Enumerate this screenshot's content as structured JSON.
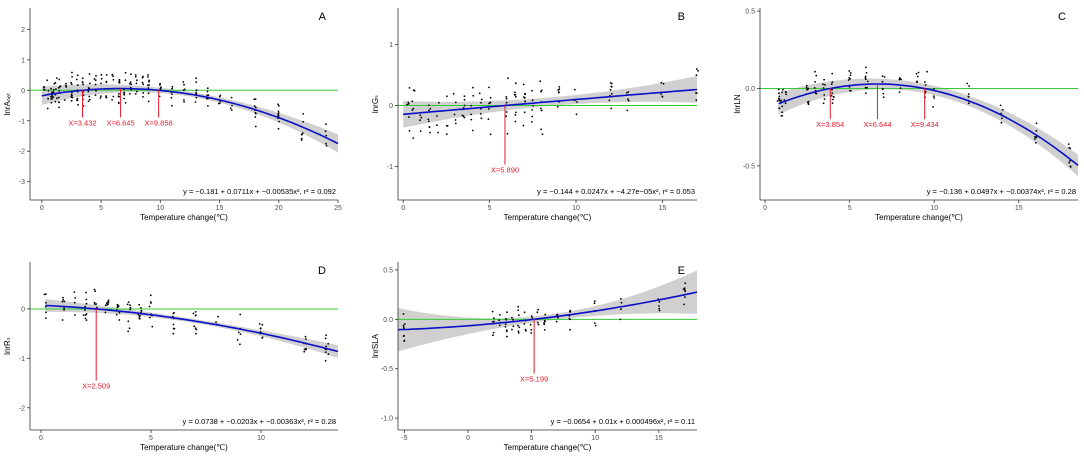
{
  "colors": {
    "points": "#000000",
    "fit": "#0a10c8",
    "band": "#c8c8c8",
    "zero": "#33cc33",
    "ann": "#e8192c",
    "axis": "#333333"
  },
  "chart_data": [
    {
      "type": "scatter",
      "panel": "A",
      "xlabel": "Temperature change(℃)",
      "ylabel": "lnrAₙₑₜ",
      "xlim": [
        -1,
        25
      ],
      "ylim": [
        -3.6,
        2.7
      ],
      "xticks": [
        0,
        5,
        10,
        15,
        20,
        25
      ],
      "xtick_labels": [
        "0",
        "5",
        "10",
        "15",
        "20",
        "25"
      ],
      "yticks": [
        -3,
        -2,
        -1,
        0,
        1,
        2
      ],
      "ytick_labels": [
        "-3",
        "-2",
        "-1",
        "0",
        "1",
        "2"
      ],
      "equation": "y = −0.181 + 0.0711x + −0.00535x², r² = 0.092",
      "coef": [
        -0.181,
        0.0711,
        -0.00535
      ],
      "fit_range": [
        0,
        25
      ],
      "band_halfwidth": [
        0.08,
        0.3
      ],
      "threshold_labels": [
        "X=3.432",
        "X=6.645",
        "X=9.858"
      ],
      "threshold_values": [
        3.432,
        6.645,
        9.858
      ],
      "threshold_label_y": -1.05,
      "scatter_x": [
        0.2,
        0.5,
        0.8,
        1,
        1.2,
        1.5,
        2,
        2.5,
        3,
        3.5,
        4,
        4.5,
        5,
        5.5,
        6,
        6.5,
        7,
        7.5,
        8,
        8.5,
        9,
        10,
        11,
        12,
        13,
        14,
        15,
        16,
        18,
        20,
        22,
        24
      ],
      "scatter_spread": 0.65
    },
    {
      "type": "scatter",
      "panel": "B",
      "xlabel": "Temperature change(℃)",
      "ylabel": "lnrGₛ",
      "xlim": [
        -0.3,
        17
      ],
      "ylim": [
        -1.55,
        1.6
      ],
      "xticks": [
        0,
        5,
        10,
        15
      ],
      "xtick_labels": [
        "0",
        "5",
        "10",
        "15"
      ],
      "yticks": [
        -1,
        0,
        1
      ],
      "ytick_labels": [
        "-1",
        "0",
        "1"
      ],
      "equation": "y = −0.144 + 0.0247x + −4.27e−05x², r² = 0.053",
      "coef": [
        -0.144,
        0.0247,
        -4.27e-05
      ],
      "fit_range": [
        0,
        17
      ],
      "band_halfwidth": [
        0.07,
        0.22
      ],
      "threshold_labels": [
        "X=5.890"
      ],
      "threshold_values": [
        5.89
      ],
      "threshold_label_y": -1.05,
      "scatter_x": [
        0.3,
        0.6,
        1,
        1.5,
        2,
        2.5,
        3,
        3.5,
        4,
        4.5,
        5,
        6,
        6.5,
        7,
        7.5,
        8,
        9,
        10,
        12,
        13,
        15,
        17
      ],
      "scatter_spread": 0.55
    },
    {
      "type": "scatter",
      "panel": "C",
      "xlabel": "Temperature change(℃)",
      "ylabel": "lnrLN",
      "xlim": [
        -0.3,
        18.5
      ],
      "ylim": [
        -0.72,
        0.52
      ],
      "xticks": [
        0,
        5,
        10,
        15
      ],
      "xtick_labels": [
        "0",
        "5",
        "10",
        "15"
      ],
      "yticks": [
        -0.5,
        0,
        0.5
      ],
      "ytick_labels": [
        "-0.5",
        "0.0",
        "0.5"
      ],
      "equation": "y = −0.136 + 0.0497x + −0.00374x², r² = 0.28",
      "coef": [
        -0.136,
        0.0497,
        -0.00374
      ],
      "fit_range": [
        0.8,
        18.5
      ],
      "band_halfwidth": [
        0.03,
        0.07
      ],
      "threshold_labels": [
        "X=3.854",
        "X=6.644",
        "X=9.434"
      ],
      "threshold_values": [
        3.854,
        6.644,
        9.434
      ],
      "threshold_label_y": -0.23,
      "scatter_x": [
        0.8,
        1,
        1.2,
        2.5,
        3,
        3.5,
        4,
        5,
        6,
        7,
        8,
        9,
        9.5,
        10,
        12,
        14,
        16,
        18
      ],
      "scatter_spread": 0.13
    },
    {
      "type": "scatter",
      "panel": "D",
      "xlabel": "Temperature change(℃)",
      "ylabel": "lnrRₛ",
      "xlim": [
        -0.5,
        13.5
      ],
      "ylim": [
        -2.45,
        0.95
      ],
      "xticks": [
        0,
        5,
        10
      ],
      "xtick_labels": [
        "0",
        "5",
        "10"
      ],
      "yticks": [
        -2,
        -1,
        0
      ],
      "ytick_labels": [
        "-2",
        "-1",
        "0"
      ],
      "equation": "y = 0.0738 + −0.0203x + −0.00363x², r² = 0.28",
      "coef": [
        0.0738,
        -0.0203,
        -0.00363
      ],
      "fit_range": [
        0.2,
        13.5
      ],
      "band_halfwidth": [
        0.04,
        0.13
      ],
      "threshold_labels": [
        "X=2.509"
      ],
      "threshold_values": [
        2.509
      ],
      "threshold_label_y": -1.55,
      "scatter_x": [
        0.2,
        1,
        1.5,
        2,
        2.5,
        3,
        3.5,
        4,
        4.5,
        5,
        6,
        7,
        8,
        9,
        10,
        12,
        13
      ],
      "scatter_spread": 0.45
    },
    {
      "type": "scatter",
      "panel": "E",
      "xlabel": "Temperature change(℃)",
      "ylabel": "lnrSLA",
      "xlim": [
        -5.5,
        18
      ],
      "ylim": [
        -1.12,
        0.58
      ],
      "xticks": [
        -5,
        0,
        5,
        10,
        15
      ],
      "xtick_labels": [
        "-5",
        "0",
        "5",
        "10",
        "15"
      ],
      "yticks": [
        -1,
        -0.5,
        0,
        0.5
      ],
      "ytick_labels": [
        "-1.0",
        "-0.5",
        "0.0",
        "0.5"
      ],
      "equation": "y = −0.0654 + 0.01x + 0.000496x², r² = 0.11",
      "coef": [
        -0.0654,
        0.01,
        0.000496
      ],
      "fit_range": [
        -5.5,
        18
      ],
      "band_halfwidth": [
        0.03,
        0.22
      ],
      "threshold_labels": [
        "X=5.199"
      ],
      "threshold_values": [
        5.199
      ],
      "threshold_label_y": -0.6,
      "scatter_x": [
        -5,
        2,
        2.5,
        3,
        3.5,
        4,
        4.5,
        5,
        5.5,
        6,
        7,
        8,
        10,
        12,
        15,
        17
      ],
      "scatter_spread": 0.18
    }
  ]
}
